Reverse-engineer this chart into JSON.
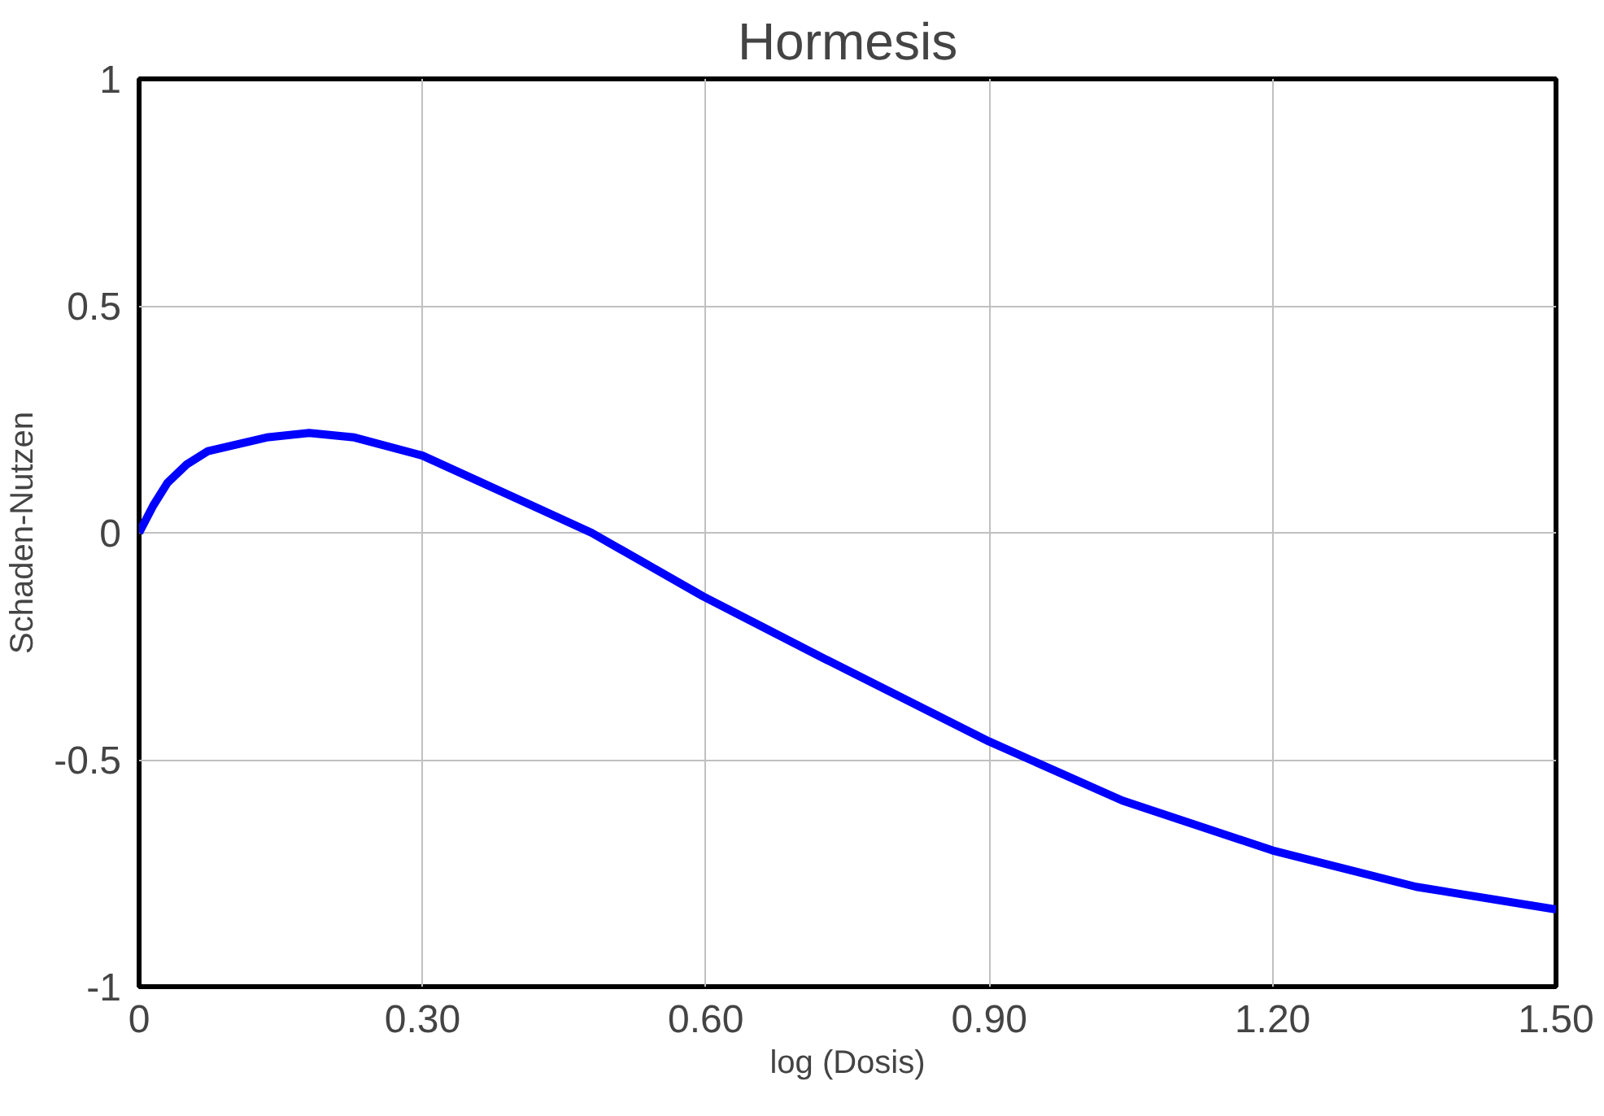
{
  "chart_data": {
    "type": "line",
    "title": "Hormesis",
    "xlabel": "log (Dosis)",
    "ylabel": "Schaden-Nutzen",
    "x": [
      0,
      0.015,
      0.03,
      0.05,
      0.073,
      0.135,
      0.18,
      0.228,
      0.3,
      0.416,
      0.479,
      0.597,
      0.728,
      0.9,
      1.041,
      1.2,
      1.352,
      1.5
    ],
    "series": [
      {
        "color": "#0000ff",
        "values": [
          0,
          0.06,
          0.11,
          0.15,
          0.18,
          0.21,
          0.22,
          0.21,
          0.17,
          0.06,
          0,
          -0.14,
          -0.28,
          -0.46,
          -0.59,
          -0.7,
          -0.78,
          -0.83
        ]
      }
    ],
    "xlim": [
      0,
      1.5
    ],
    "ylim": [
      -1,
      1
    ],
    "xticks": [
      0,
      {
        "value": 0.3,
        "label": "0.30"
      },
      {
        "value": 0.6,
        "label": "0.60"
      },
      {
        "value": 0.9,
        "label": "0.90"
      },
      {
        "value": 1.2,
        "label": "1.20"
      },
      {
        "value": 1.5,
        "label": "1.50"
      }
    ],
    "yticks": [
      -1,
      -0.5,
      0,
      0.5,
      1
    ],
    "grid": true,
    "marker": "none",
    "line_style": "solid"
  }
}
